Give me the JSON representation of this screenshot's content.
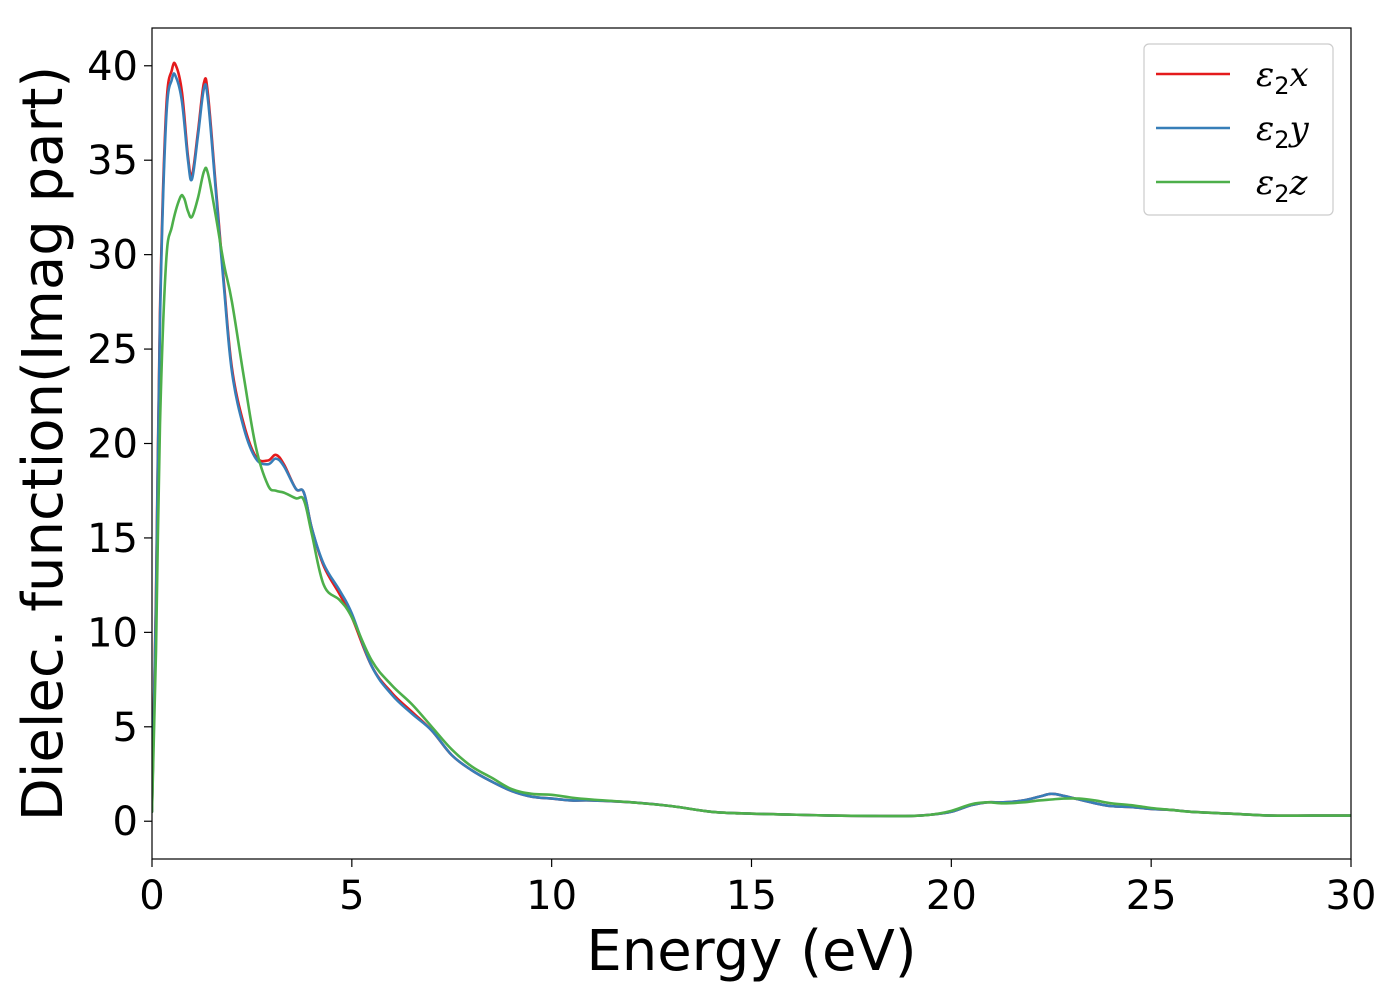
{
  "chart_data": {
    "type": "line",
    "xlabel": "Energy (eV)",
    "ylabel": "Dielec. function(Imag part)",
    "xlim": [
      0,
      30
    ],
    "ylim": [
      -2,
      42
    ],
    "xticks": [
      0,
      5,
      10,
      15,
      20,
      25,
      30
    ],
    "yticks": [
      0,
      5,
      10,
      15,
      20,
      25,
      30,
      35,
      40
    ],
    "grid": false,
    "legend_position": "top-right",
    "series": [
      {
        "name": "ε2x",
        "legend_base": "ε",
        "legend_sub": "2",
        "legend_suffix": "x",
        "color": "#e41a1c",
        "x": [
          0,
          0.1,
          0.2,
          0.35,
          0.5,
          0.6,
          0.75,
          0.9,
          1.0,
          1.15,
          1.3,
          1.4,
          1.6,
          1.8,
          2.0,
          2.3,
          2.6,
          2.9,
          3.1,
          3.3,
          3.6,
          3.8,
          4.0,
          4.3,
          4.7,
          5.0,
          5.5,
          6.0,
          6.5,
          7.0,
          7.5,
          8.0,
          8.5,
          9.0,
          9.5,
          10.0,
          10.5,
          11.0,
          12.0,
          13.0,
          14.0,
          15.0,
          16.0,
          17.0,
          18.0,
          19.0,
          19.5,
          20.0,
          20.5,
          20.9,
          21.3,
          21.8,
          22.2,
          22.5,
          22.8,
          23.2,
          23.6,
          24.0,
          24.5,
          25.0,
          25.5,
          26.0,
          27.0,
          28.0,
          29.0,
          30.0
        ],
        "y": [
          0.5,
          12,
          27,
          37.5,
          39.8,
          40.0,
          38.6,
          35.2,
          34.2,
          36.5,
          39.1,
          38.5,
          33.5,
          28.5,
          24,
          21,
          19.3,
          19.1,
          19.4,
          18.9,
          17.6,
          17.4,
          15.5,
          13.5,
          12.0,
          10.8,
          8.2,
          6.8,
          5.8,
          4.8,
          3.5,
          2.7,
          2.1,
          1.6,
          1.3,
          1.2,
          1.1,
          1.1,
          1.0,
          0.8,
          0.5,
          0.4,
          0.35,
          0.3,
          0.28,
          0.28,
          0.35,
          0.5,
          0.85,
          1.0,
          1.0,
          1.1,
          1.3,
          1.45,
          1.35,
          1.15,
          0.95,
          0.8,
          0.75,
          0.65,
          0.6,
          0.5,
          0.4,
          0.3,
          0.3,
          0.3
        ]
      },
      {
        "name": "ε2y",
        "legend_base": "ε",
        "legend_sub": "2",
        "legend_suffix": "y",
        "color": "#377eb8",
        "x": [
          0,
          0.1,
          0.2,
          0.35,
          0.5,
          0.6,
          0.75,
          0.9,
          1.0,
          1.15,
          1.3,
          1.4,
          1.6,
          1.8,
          2.0,
          2.3,
          2.6,
          2.9,
          3.1,
          3.3,
          3.6,
          3.8,
          4.0,
          4.3,
          4.7,
          5.0,
          5.5,
          6.0,
          6.5,
          7.0,
          7.5,
          8.0,
          8.5,
          9.0,
          9.5,
          10.0,
          10.5,
          11.0,
          12.0,
          13.0,
          14.0,
          15.0,
          16.0,
          17.0,
          18.0,
          19.0,
          19.5,
          20.0,
          20.5,
          20.9,
          21.3,
          21.8,
          22.2,
          22.5,
          22.8,
          23.2,
          23.6,
          24.0,
          24.5,
          25.0,
          25.5,
          26.0,
          27.0,
          28.0,
          29.0,
          30.0
        ],
        "y": [
          0.5,
          11.5,
          26.5,
          37,
          39.3,
          39.4,
          38.1,
          35.0,
          34.0,
          36.3,
          38.8,
          38.2,
          33.3,
          28.3,
          23.8,
          20.8,
          19.2,
          18.9,
          19.2,
          18.8,
          17.6,
          17.4,
          15.5,
          13.6,
          12.2,
          11.0,
          8.2,
          6.7,
          5.7,
          4.8,
          3.5,
          2.7,
          2.1,
          1.6,
          1.3,
          1.2,
          1.1,
          1.1,
          1.0,
          0.8,
          0.5,
          0.4,
          0.35,
          0.3,
          0.28,
          0.28,
          0.35,
          0.5,
          0.85,
          1.0,
          1.0,
          1.1,
          1.3,
          1.45,
          1.35,
          1.15,
          0.95,
          0.8,
          0.75,
          0.65,
          0.6,
          0.5,
          0.4,
          0.3,
          0.3,
          0.3
        ]
      },
      {
        "name": "ε2z",
        "legend_base": "ε",
        "legend_sub": "2",
        "legend_suffix": "z",
        "color": "#4daf4a",
        "x": [
          0,
          0.1,
          0.2,
          0.35,
          0.5,
          0.7,
          0.8,
          0.9,
          1.0,
          1.15,
          1.3,
          1.4,
          1.6,
          1.8,
          2.0,
          2.3,
          2.6,
          2.9,
          3.1,
          3.3,
          3.6,
          3.8,
          4.0,
          4.3,
          4.7,
          5.0,
          5.5,
          6.0,
          6.5,
          7.0,
          7.5,
          8.0,
          8.5,
          9.0,
          9.5,
          10.0,
          10.5,
          11.0,
          12.0,
          13.0,
          14.0,
          15.0,
          16.0,
          17.0,
          18.0,
          19.0,
          19.5,
          20.0,
          20.5,
          20.9,
          21.3,
          21.8,
          22.2,
          22.5,
          22.8,
          23.2,
          23.6,
          24.0,
          24.5,
          25.0,
          25.5,
          26.0,
          27.0,
          28.0,
          29.0,
          30.0
        ],
        "y": [
          0.5,
          9,
          21,
          29.5,
          31.5,
          33.0,
          33.0,
          32.3,
          32.0,
          33.0,
          34.4,
          34.3,
          32.0,
          29.5,
          27.5,
          23.5,
          19.8,
          17.8,
          17.5,
          17.4,
          17.1,
          17.0,
          15.2,
          12.5,
          11.7,
          10.8,
          8.5,
          7.2,
          6.2,
          5.0,
          3.8,
          2.9,
          2.3,
          1.7,
          1.45,
          1.4,
          1.25,
          1.15,
          1.0,
          0.8,
          0.5,
          0.4,
          0.35,
          0.3,
          0.28,
          0.28,
          0.35,
          0.55,
          0.9,
          1.0,
          0.95,
          1.0,
          1.1,
          1.15,
          1.2,
          1.2,
          1.1,
          0.95,
          0.85,
          0.7,
          0.6,
          0.5,
          0.4,
          0.3,
          0.3,
          0.3
        ]
      }
    ]
  }
}
